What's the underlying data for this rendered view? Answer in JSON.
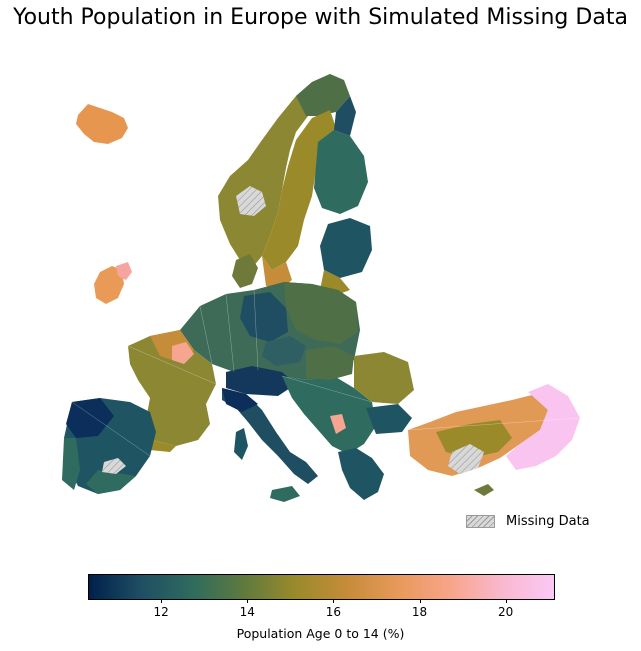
{
  "title": "Youth Population in Europe with Simulated Missing Data",
  "legend": {
    "missing_label": "Missing Data",
    "missing_color": "#d3d3d3"
  },
  "colorbar": {
    "label": "Population Age 0 to 14 (%)",
    "min": 10.3,
    "max": 21.1,
    "ticks": [
      "12",
      "14",
      "16",
      "18",
      "20"
    ],
    "tick_values": [
      12,
      14,
      16,
      18,
      20
    ],
    "colormap": [
      "#00204c",
      "#1f4e63",
      "#2f6b5e",
      "#5f7a3e",
      "#9a8a2b",
      "#c58c3a",
      "#e89a5a",
      "#f7a58a",
      "#f9b8cf",
      "#fbc8f5"
    ]
  },
  "regions_colors": {
    "low": "#0b2f5a",
    "mid_low": "#1f5563",
    "mid": "#4f7046",
    "mid_high": "#9b8a2a",
    "high": "#e19a56",
    "very_high": "#f6a590",
    "max": "#f9c4ef"
  }
}
